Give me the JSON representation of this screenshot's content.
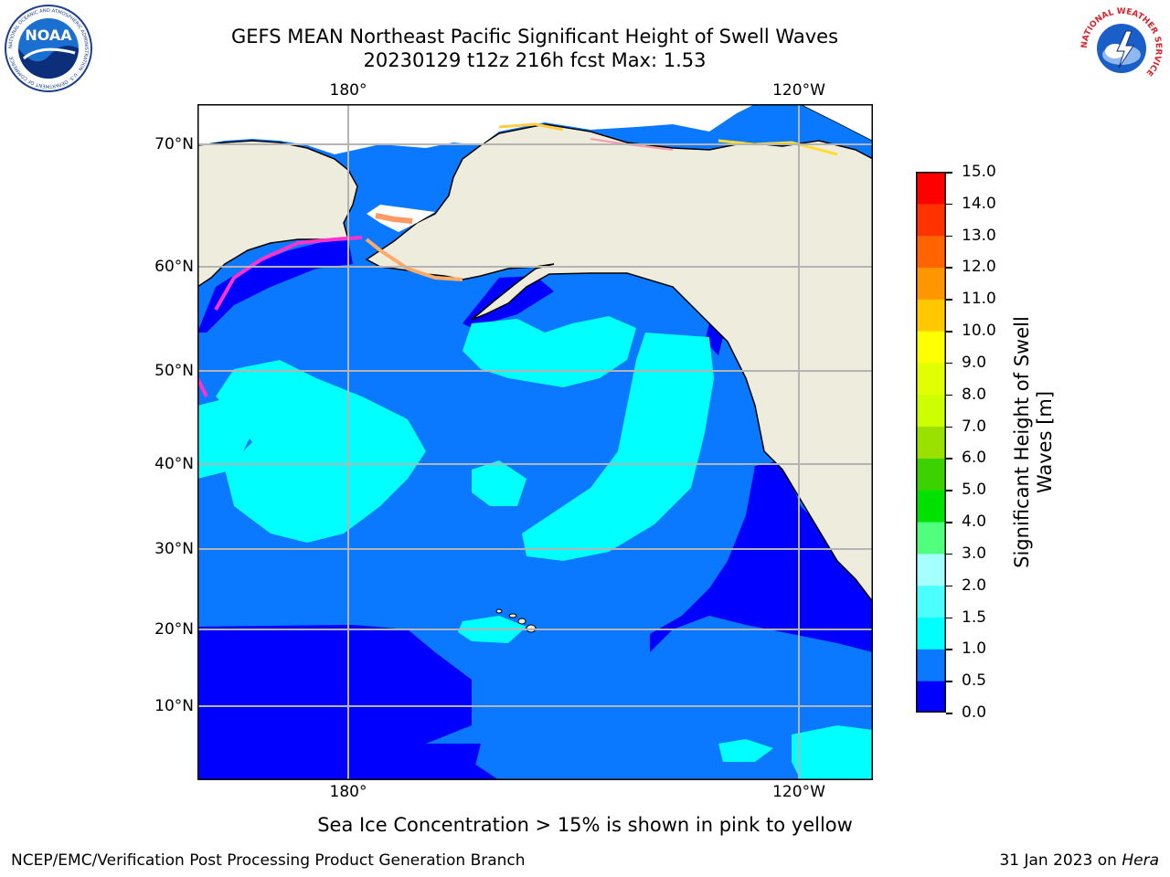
{
  "title_line1": "GEFS MEAN Northeast Pacific Significant Height of Swell Waves",
  "title_line2": "20230129 t12z 216h fcst   Max: 1.53",
  "lon_labels": [
    "180°",
    "120°W"
  ],
  "lat_labels": [
    "70°N",
    "60°N",
    "50°N",
    "40°N",
    "30°N",
    "20°N",
    "10°N"
  ],
  "colorbar": {
    "label_line1": "Significant Height of Swell",
    "label_line2": "Waves [m]",
    "ticks": [
      "0.0",
      "0.5",
      "1.0",
      "1.5",
      "2.0",
      "3.0",
      "4.0",
      "5.0",
      "6.0",
      "7.0",
      "8.0",
      "9.0",
      "10.0",
      "11.0",
      "12.0",
      "13.0",
      "14.0",
      "15.0"
    ],
    "colors": [
      "#0000ff",
      "#0a78ff",
      "#00ffff",
      "#4cffff",
      "#a6ffff",
      "#50ff7d",
      "#00e100",
      "#3cd200",
      "#9be100",
      "#cdff00",
      "#e1ff00",
      "#ffff00",
      "#ffc800",
      "#ff9600",
      "#ff6400",
      "#ff3200",
      "#ff0000"
    ]
  },
  "colors": {
    "land": "#eeecdc",
    "ocean_base": "#0a78ff",
    "ocean_low": "#0000ff",
    "ocean_high": "#00ffff",
    "grid": "#b4b4b4"
  },
  "sea_ice_note": "Sea Ice Concentration > 15% is shown in pink to yellow",
  "footer_left": "NCEP/EMC/Verification Post Processing Product Generation Branch",
  "footer_right_prefix": "31 Jan 2023 on ",
  "footer_right_host": "Hera",
  "logos": {
    "noaa_text": "NOAA",
    "noaa_ring_text": "NATIONAL OCEANIC AND ATMOSPHERIC ADMINISTRATION · U.S. DEPARTMENT OF COMMERCE",
    "nws_ring_text": "NATIONAL WEATHER SERVICE"
  }
}
